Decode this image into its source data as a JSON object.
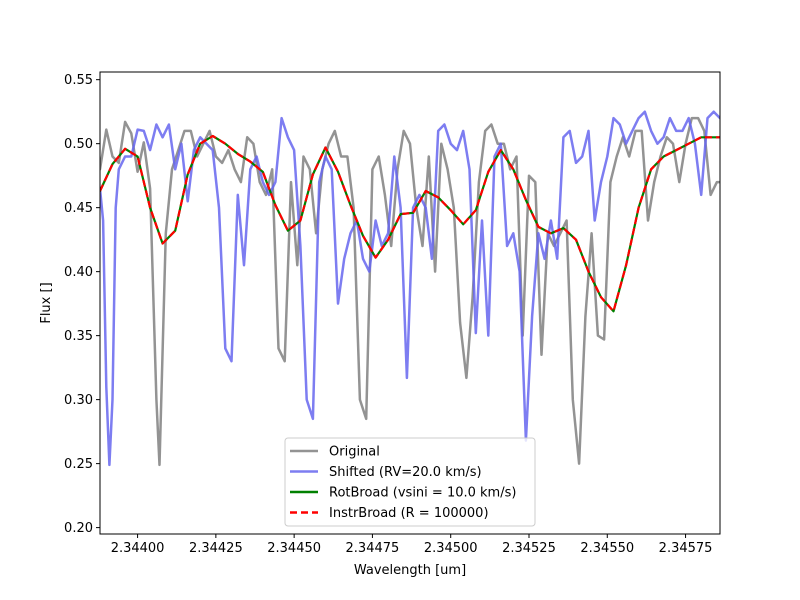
{
  "chart_data": {
    "type": "line",
    "title": "",
    "xlabel": "Wavelength [um]",
    "ylabel": "Flux []",
    "xlim": [
      2.34388,
      2.34586
    ],
    "ylim": [
      0.195,
      0.556
    ],
    "xticks": [
      2.344,
      2.34425,
      2.3445,
      2.34475,
      2.345,
      2.34525,
      2.3455,
      2.34575
    ],
    "xtick_labels": [
      "2.34400",
      "2.34425",
      "2.34450",
      "2.34475",
      "2.34500",
      "2.34525",
      "2.34550",
      "2.34575"
    ],
    "yticks": [
      0.2,
      0.25,
      0.3,
      0.35,
      0.4,
      0.45,
      0.5,
      0.55
    ],
    "ytick_labels": [
      "0.20",
      "0.25",
      "0.30",
      "0.35",
      "0.40",
      "0.45",
      "0.50",
      "0.55"
    ],
    "grid": false,
    "legend_position": "lower-center",
    "series": [
      {
        "name": "Original",
        "color": "#808080",
        "dash": "solid",
        "x": [
          2.34388,
          2.3439,
          2.34392,
          2.34394,
          2.34396,
          2.34398,
          2.344,
          2.34402,
          2.34404,
          2.34406,
          2.34407,
          2.34409,
          2.34411,
          2.34413,
          2.34415,
          2.34417,
          2.34419,
          2.34421,
          2.34423,
          2.34425,
          2.34427,
          2.34429,
          2.34431,
          2.34433,
          2.34435,
          2.34437,
          2.34439,
          2.34441,
          2.34443,
          2.34445,
          2.34447,
          2.34449,
          2.34451,
          2.34453,
          2.34455,
          2.34457,
          2.34459,
          2.34461,
          2.34463,
          2.34465,
          2.34467,
          2.34469,
          2.34471,
          2.34473,
          2.34475,
          2.34477,
          2.34479,
          2.34481,
          2.34483,
          2.34485,
          2.34487,
          2.34489,
          2.34491,
          2.34493,
          2.34495,
          2.34497,
          2.34499,
          2.34501,
          2.34503,
          2.34505,
          2.34507,
          2.34509,
          2.34511,
          2.34513,
          2.34515,
          2.34517,
          2.34519,
          2.34521,
          2.34523,
          2.34525,
          2.34527,
          2.34529,
          2.34531,
          2.34533,
          2.34535,
          2.34537,
          2.34539,
          2.34541,
          2.34543,
          2.34545,
          2.34547,
          2.34549,
          2.34551,
          2.34553,
          2.34555,
          2.34557,
          2.34559,
          2.34561,
          2.34563,
          2.34565,
          2.34567,
          2.34569,
          2.34571,
          2.34573,
          2.34575,
          2.34577,
          2.34579,
          2.34581,
          2.34583,
          2.34585,
          2.34586
        ],
        "y": [
          0.48,
          0.511,
          0.49,
          0.485,
          0.517,
          0.508,
          0.478,
          0.501,
          0.465,
          0.3,
          0.249,
          0.43,
          0.48,
          0.495,
          0.51,
          0.51,
          0.49,
          0.5,
          0.51,
          0.49,
          0.485,
          0.495,
          0.48,
          0.47,
          0.505,
          0.5,
          0.47,
          0.46,
          0.48,
          0.34,
          0.33,
          0.47,
          0.405,
          0.49,
          0.48,
          0.43,
          0.48,
          0.5,
          0.51,
          0.49,
          0.49,
          0.45,
          0.3,
          0.285,
          0.48,
          0.49,
          0.46,
          0.42,
          0.48,
          0.51,
          0.5,
          0.45,
          0.42,
          0.49,
          0.4,
          0.5,
          0.48,
          0.45,
          0.36,
          0.317,
          0.38,
          0.47,
          0.51,
          0.515,
          0.5,
          0.5,
          0.48,
          0.49,
          0.35,
          0.475,
          0.47,
          0.335,
          0.43,
          0.42,
          0.43,
          0.44,
          0.3,
          0.25,
          0.365,
          0.43,
          0.35,
          0.347,
          0.47,
          0.49,
          0.505,
          0.49,
          0.51,
          0.51,
          0.44,
          0.47,
          0.49,
          0.505,
          0.5,
          0.47,
          0.5,
          0.52,
          0.52,
          0.51,
          0.46,
          0.47,
          0.47
        ]
      },
      {
        "name": "Shifted (RV=20.0 km/s)",
        "color": "#6666ee",
        "dash": "solid",
        "x": [
          2.34388,
          2.34389,
          2.3439,
          2.34391,
          2.34392,
          2.34393,
          2.34394,
          2.34396,
          2.34398,
          2.344,
          2.34402,
          2.34404,
          2.34406,
          2.34408,
          2.3441,
          2.34412,
          2.34414,
          2.34416,
          2.34418,
          2.3442,
          2.34422,
          2.34424,
          2.34426,
          2.34428,
          2.3443,
          2.34432,
          2.34434,
          2.34436,
          2.34438,
          2.3444,
          2.34442,
          2.34444,
          2.34446,
          2.34448,
          2.3445,
          2.34452,
          2.34454,
          2.34456,
          2.34458,
          2.3446,
          2.34462,
          2.34464,
          2.34466,
          2.34468,
          2.3447,
          2.34472,
          2.34474,
          2.34476,
          2.34478,
          2.3448,
          2.34482,
          2.34484,
          2.34486,
          2.34488,
          2.3449,
          2.34492,
          2.34494,
          2.34496,
          2.34498,
          2.345,
          2.34502,
          2.34504,
          2.34506,
          2.34508,
          2.3451,
          2.34512,
          2.34514,
          2.34516,
          2.34518,
          2.3452,
          2.34522,
          2.34524,
          2.34526,
          2.34528,
          2.3453,
          2.34532,
          2.34534,
          2.34536,
          2.34538,
          2.3454,
          2.34542,
          2.34544,
          2.34546,
          2.34548,
          2.3455,
          2.34552,
          2.34554,
          2.34556,
          2.34558,
          2.3456,
          2.34562,
          2.34564,
          2.34566,
          2.34568,
          2.3457,
          2.34572,
          2.34574,
          2.34576,
          2.34578,
          2.3458,
          2.34582,
          2.34584,
          2.34586
        ],
        "y": [
          0.465,
          0.44,
          0.31,
          0.249,
          0.3,
          0.45,
          0.48,
          0.49,
          0.49,
          0.511,
          0.51,
          0.495,
          0.515,
          0.505,
          0.515,
          0.48,
          0.5,
          0.455,
          0.495,
          0.505,
          0.5,
          0.495,
          0.45,
          0.34,
          0.33,
          0.46,
          0.405,
          0.48,
          0.49,
          0.47,
          0.46,
          0.47,
          0.52,
          0.505,
          0.495,
          0.42,
          0.3,
          0.285,
          0.47,
          0.49,
          0.48,
          0.375,
          0.41,
          0.43,
          0.44,
          0.41,
          0.4,
          0.44,
          0.42,
          0.43,
          0.49,
          0.45,
          0.317,
          0.45,
          0.46,
          0.45,
          0.41,
          0.51,
          0.515,
          0.5,
          0.495,
          0.51,
          0.48,
          0.352,
          0.44,
          0.35,
          0.49,
          0.5,
          0.42,
          0.43,
          0.4,
          0.268,
          0.365,
          0.43,
          0.41,
          0.44,
          0.41,
          0.505,
          0.51,
          0.485,
          0.49,
          0.51,
          0.44,
          0.47,
          0.49,
          0.52,
          0.515,
          0.5,
          0.51,
          0.52,
          0.525,
          0.51,
          0.5,
          0.505,
          0.52,
          0.51,
          0.51,
          0.52,
          0.5,
          0.46,
          0.52,
          0.525,
          0.52
        ]
      },
      {
        "name": "RotBroad (vsini = 10.0 km/s)",
        "color": "#008000",
        "dash": "solid",
        "x": [
          2.34388,
          2.34392,
          2.34396,
          2.344,
          2.34404,
          2.34408,
          2.34412,
          2.34416,
          2.3442,
          2.34424,
          2.34428,
          2.34432,
          2.34436,
          2.3444,
          2.34444,
          2.34448,
          2.34452,
          2.34456,
          2.3446,
          2.34464,
          2.34468,
          2.34472,
          2.34476,
          2.3448,
          2.34484,
          2.34488,
          2.34492,
          2.34496,
          2.345,
          2.34504,
          2.34508,
          2.34512,
          2.34516,
          2.3452,
          2.34524,
          2.34528,
          2.34532,
          2.34536,
          2.3454,
          2.34544,
          2.34548,
          2.34552,
          2.34556,
          2.3456,
          2.34564,
          2.34568,
          2.34572,
          2.34576,
          2.3458,
          2.34584,
          2.34586
        ],
        "y": [
          0.463,
          0.484,
          0.496,
          0.49,
          0.45,
          0.422,
          0.432,
          0.476,
          0.5,
          0.506,
          0.5,
          0.492,
          0.486,
          0.478,
          0.452,
          0.432,
          0.44,
          0.476,
          0.497,
          0.478,
          0.452,
          0.428,
          0.411,
          0.425,
          0.445,
          0.446,
          0.463,
          0.458,
          0.448,
          0.437,
          0.448,
          0.478,
          0.495,
          0.48,
          0.456,
          0.435,
          0.43,
          0.434,
          0.425,
          0.4,
          0.38,
          0.369,
          0.405,
          0.45,
          0.48,
          0.49,
          0.495,
          0.5,
          0.505,
          0.505,
          0.505
        ]
      },
      {
        "name": "InstrBroad (R = 100000)",
        "color": "#ff0000",
        "dash": "dashed",
        "x": [
          2.34388,
          2.34392,
          2.34396,
          2.344,
          2.34404,
          2.34408,
          2.34412,
          2.34416,
          2.3442,
          2.34424,
          2.34428,
          2.34432,
          2.34436,
          2.3444,
          2.34444,
          2.34448,
          2.34452,
          2.34456,
          2.3446,
          2.34464,
          2.34468,
          2.34472,
          2.34476,
          2.3448,
          2.34484,
          2.34488,
          2.34492,
          2.34496,
          2.345,
          2.34504,
          2.34508,
          2.34512,
          2.34516,
          2.3452,
          2.34524,
          2.34528,
          2.34532,
          2.34536,
          2.3454,
          2.34544,
          2.34548,
          2.34552,
          2.34556,
          2.3456,
          2.34564,
          2.34568,
          2.34572,
          2.34576,
          2.3458,
          2.34584,
          2.34586
        ],
        "y": [
          0.463,
          0.484,
          0.496,
          0.49,
          0.45,
          0.422,
          0.432,
          0.476,
          0.5,
          0.506,
          0.5,
          0.492,
          0.486,
          0.478,
          0.452,
          0.432,
          0.44,
          0.476,
          0.497,
          0.478,
          0.452,
          0.428,
          0.411,
          0.425,
          0.445,
          0.446,
          0.463,
          0.458,
          0.448,
          0.437,
          0.448,
          0.478,
          0.495,
          0.48,
          0.456,
          0.435,
          0.43,
          0.434,
          0.425,
          0.4,
          0.38,
          0.369,
          0.405,
          0.45,
          0.48,
          0.49,
          0.495,
          0.5,
          0.505,
          0.505,
          0.505
        ]
      }
    ]
  }
}
